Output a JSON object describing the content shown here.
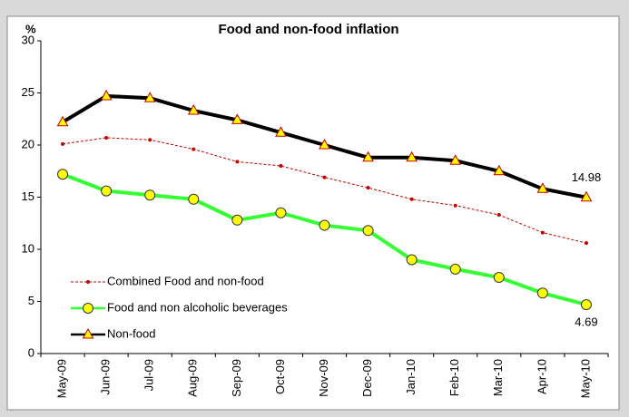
{
  "chart_data": {
    "type": "line",
    "title": "Food and non-food inflation",
    "y_label": "%",
    "categories": [
      "May-09",
      "Jun-09",
      "Jul-09",
      "Aug-09",
      "Sep-09",
      "Oct-09",
      "Nov-09",
      "Dec-09",
      "Jan-10",
      "Feb-10",
      "Mar-10",
      "Apr-10",
      "May-10"
    ],
    "series": [
      {
        "name": "Combined  Food and non-food",
        "color": "#c00000",
        "marker": "dot",
        "values": [
          20.1,
          20.7,
          20.5,
          19.6,
          18.4,
          18.0,
          16.9,
          15.9,
          14.8,
          14.2,
          13.3,
          11.6,
          10.6
        ]
      },
      {
        "name": "Food and non alcoholic beverages",
        "color": "#33ff33",
        "marker": "circle",
        "values": [
          17.2,
          15.6,
          15.2,
          14.8,
          12.8,
          13.5,
          12.3,
          11.8,
          9.0,
          8.1,
          7.3,
          5.8,
          4.69
        ]
      },
      {
        "name": "Non-food",
        "color": "#000000",
        "marker": "triangle",
        "values": [
          22.2,
          24.7,
          24.5,
          23.3,
          22.4,
          21.2,
          20.0,
          18.8,
          18.8,
          18.5,
          17.5,
          15.8,
          14.98
        ]
      }
    ],
    "label_last": true,
    "grid": false,
    "legend": "lower left",
    "ylim": [
      0,
      30
    ],
    "yticks": [
      0,
      5,
      10,
      15,
      20,
      25,
      30
    ]
  }
}
